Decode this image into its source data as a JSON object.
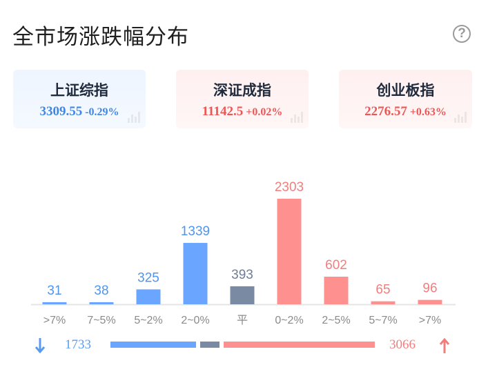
{
  "header": {
    "title": "全市场涨跌幅分布",
    "help_icon": "question-circle-icon",
    "help_glyph": "?"
  },
  "indices": [
    {
      "name": "上证综指",
      "price": "3309.55",
      "change": "-0.29%",
      "tone": "down"
    },
    {
      "name": "深证成指",
      "price": "11142.5",
      "change": "+0.02%",
      "tone": "up"
    },
    {
      "name": "创业板指",
      "price": "2276.57",
      "change": "+0.63%",
      "tone": "up"
    }
  ],
  "colors": {
    "down": "#6aa6ff",
    "flat": "#7a8aa3",
    "up": "#ff9090",
    "down_text": "#4f95f0",
    "flat_text": "#6e7d96",
    "up_text": "#f27d7d",
    "axis": "#e4e4e4",
    "tick": "#8a8a8a"
  },
  "chart_data": {
    "type": "bar",
    "categories": [
      ">7%",
      "7~5%",
      "5~2%",
      "2~0%",
      "平",
      "0~2%",
      "2~5%",
      "5~7%",
      ">7%"
    ],
    "values": [
      31,
      38,
      325,
      1339,
      393,
      2303,
      602,
      65,
      96
    ],
    "groups": [
      "down",
      "down",
      "down",
      "down",
      "flat",
      "up",
      "up",
      "up",
      "up"
    ],
    "ylim": [
      0,
      2303
    ],
    "data_labels": true
  },
  "summary": {
    "down_count": "1733",
    "up_count": "3066",
    "flat_count": 393,
    "down_icon": "arrow-down-icon",
    "up_icon": "arrow-up-icon"
  }
}
